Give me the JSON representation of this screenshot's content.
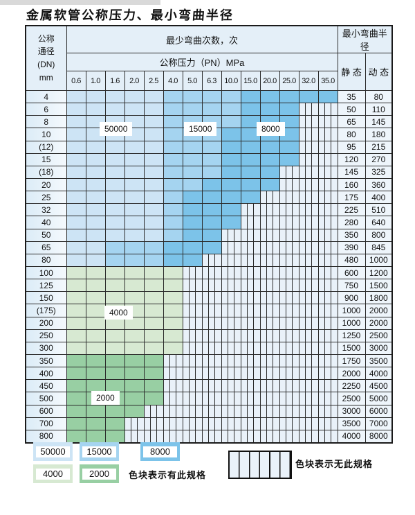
{
  "title": "金属软管公称压力、最小弯曲半径",
  "header": {
    "dn_lines": [
      "公称",
      "通径",
      "(DN)",
      "mm"
    ],
    "cycles_title": "最少弯曲次数，次",
    "pressure_title": "公称压力（PN）MPa",
    "radius_title": "最小弯曲半径",
    "static_label": "静 态",
    "dynamic_label": "动 态"
  },
  "pressures": [
    "0.6",
    "1.0",
    "1.6",
    "2.0",
    "2.5",
    "4.0",
    "5.0",
    "6.3",
    "10.0",
    "15.0",
    "20.0",
    "25.0",
    "32.0",
    "35.0"
  ],
  "zone_labels": {
    "z50000": "50000",
    "z15000": "15000",
    "z8000": "8000",
    "z4000": "4000",
    "z2000": "2000"
  },
  "colors": {
    "c50000": "#cde4f5",
    "c15000": "#a5d4f0",
    "c8000": "#7cc3e9",
    "c4000": "#d7e9d2",
    "c2000": "#98cfa3",
    "hatch_bg": "#e9f1f9"
  },
  "rows": [
    {
      "dn": "4",
      "zones": [
        [
          "50000",
          5
        ],
        [
          "15000",
          4
        ],
        [
          "8000",
          5
        ]
      ],
      "hatch": 0,
      "static": "35",
      "dynamic": "80"
    },
    {
      "dn": "6",
      "zones": [
        [
          "50000",
          5
        ],
        [
          "15000",
          4
        ],
        [
          "8000",
          3
        ]
      ],
      "hatch": 2,
      "static": "50",
      "dynamic": "110"
    },
    {
      "dn": "8",
      "zones": [
        [
          "50000",
          5
        ],
        [
          "15000",
          4
        ],
        [
          "8000",
          3
        ]
      ],
      "hatch": 2,
      "static": "65",
      "dynamic": "145"
    },
    {
      "dn": "10",
      "zones": [
        [
          "50000",
          5
        ],
        [
          "15000",
          3
        ],
        [
          "8000",
          4
        ]
      ],
      "hatch": 2,
      "static": "80",
      "dynamic": "180"
    },
    {
      "dn": "(12)",
      "zones": [
        [
          "50000",
          5
        ],
        [
          "15000",
          3
        ],
        [
          "8000",
          4
        ]
      ],
      "hatch": 2,
      "static": "95",
      "dynamic": "215"
    },
    {
      "dn": "15",
      "zones": [
        [
          "50000",
          5
        ],
        [
          "15000",
          3
        ],
        [
          "8000",
          4
        ]
      ],
      "hatch": 2,
      "static": "120",
      "dynamic": "270"
    },
    {
      "dn": "(18)",
      "zones": [
        [
          "50000",
          5
        ],
        [
          "15000",
          3
        ],
        [
          "8000",
          3
        ]
      ],
      "hatch": 3,
      "static": "145",
      "dynamic": "325"
    },
    {
      "dn": "20",
      "zones": [
        [
          "50000",
          5
        ],
        [
          "15000",
          2
        ],
        [
          "8000",
          4
        ]
      ],
      "hatch": 3,
      "static": "160",
      "dynamic": "360"
    },
    {
      "dn": "25",
      "zones": [
        [
          "50000",
          5
        ],
        [
          "15000",
          1
        ],
        [
          "8000",
          4
        ]
      ],
      "hatch": 4,
      "static": "175",
      "dynamic": "400"
    },
    {
      "dn": "32",
      "zones": [
        [
          "50000",
          5
        ],
        [
          "15000",
          1
        ],
        [
          "8000",
          3
        ]
      ],
      "hatch": 5,
      "static": "225",
      "dynamic": "510"
    },
    {
      "dn": "40",
      "zones": [
        [
          "50000",
          5
        ],
        [
          "15000",
          1
        ],
        [
          "8000",
          3
        ]
      ],
      "hatch": 5,
      "static": "280",
      "dynamic": "640"
    },
    {
      "dn": "50",
      "zones": [
        [
          "50000",
          5
        ],
        [
          "15000",
          1
        ],
        [
          "8000",
          2
        ]
      ],
      "hatch": 6,
      "static": "350",
      "dynamic": "800"
    },
    {
      "dn": "65",
      "zones": [
        [
          "50000",
          2
        ],
        [
          "15000",
          3
        ],
        [
          "8000",
          3
        ]
      ],
      "hatch": 6,
      "static": "390",
      "dynamic": "845"
    },
    {
      "dn": "80",
      "zones": [
        [
          "50000",
          2
        ],
        [
          "15000",
          3
        ],
        [
          "8000",
          2
        ]
      ],
      "hatch": 7,
      "static": "480",
      "dynamic": "1000"
    },
    {
      "dn": "100",
      "zones": [
        [
          "4000",
          6
        ]
      ],
      "hatch": 8,
      "static": "600",
      "dynamic": "1200"
    },
    {
      "dn": "125",
      "zones": [
        [
          "4000",
          6
        ]
      ],
      "hatch": 8,
      "static": "750",
      "dynamic": "1500"
    },
    {
      "dn": "150",
      "zones": [
        [
          "4000",
          6
        ]
      ],
      "hatch": 8,
      "static": "900",
      "dynamic": "1800"
    },
    {
      "dn": "(175)",
      "zones": [
        [
          "4000",
          6
        ]
      ],
      "hatch": 8,
      "static": "1000",
      "dynamic": "2000"
    },
    {
      "dn": "200",
      "zones": [
        [
          "4000",
          6
        ]
      ],
      "hatch": 8,
      "static": "1000",
      "dynamic": "2000"
    },
    {
      "dn": "250",
      "zones": [
        [
          "4000",
          6
        ]
      ],
      "hatch": 8,
      "static": "1250",
      "dynamic": "2500"
    },
    {
      "dn": "300",
      "zones": [
        [
          "4000",
          6
        ]
      ],
      "hatch": 8,
      "static": "1500",
      "dynamic": "3000"
    },
    {
      "dn": "350",
      "zones": [
        [
          "2000",
          5
        ]
      ],
      "hatch": 9,
      "static": "1750",
      "dynamic": "3500"
    },
    {
      "dn": "400",
      "zones": [
        [
          "2000",
          5
        ]
      ],
      "hatch": 9,
      "static": "2000",
      "dynamic": "4000"
    },
    {
      "dn": "450",
      "zones": [
        [
          "2000",
          5
        ]
      ],
      "hatch": 9,
      "static": "2250",
      "dynamic": "4500"
    },
    {
      "dn": "500",
      "zones": [
        [
          "2000",
          5
        ]
      ],
      "hatch": 9,
      "static": "2500",
      "dynamic": "5000"
    },
    {
      "dn": "600",
      "zones": [
        [
          "2000",
          4
        ]
      ],
      "hatch": 10,
      "static": "3000",
      "dynamic": "6000"
    },
    {
      "dn": "700",
      "zones": [
        [
          "2000",
          3
        ]
      ],
      "hatch": 11,
      "static": "3500",
      "dynamic": "7000"
    },
    {
      "dn": "800",
      "zones": [
        [
          "2000",
          3
        ]
      ],
      "hatch": 11,
      "static": "4000",
      "dynamic": "8000"
    }
  ],
  "legend": {
    "swatch_row1": [
      "50000",
      "15000",
      "8000"
    ],
    "swatch_row2": [
      "4000",
      "2000"
    ],
    "has_spec_text": "色块表示有此规格",
    "no_spec_text": "色块表示无此规格"
  }
}
